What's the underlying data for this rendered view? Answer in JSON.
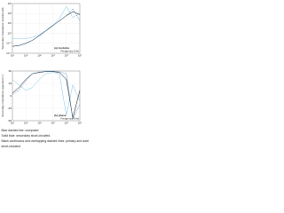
{
  "chart_data": [
    {
      "type": "line",
      "ylabel": "Secondary impedance modulus (Ω)",
      "xlabel": "Frequency (Hz)",
      "annotation": "(a) modulus",
      "xscale": "log",
      "yscale": "log",
      "grid": true,
      "x": [
        10,
        30,
        100,
        300,
        1000,
        3000,
        10000,
        30000,
        100000,
        300000,
        1000000
      ],
      "xlim": [
        10,
        1000000
      ],
      "xticks": [
        {
          "value": 10,
          "label": "10¹"
        },
        {
          "value": 100,
          "label": "10²"
        },
        {
          "value": 1000,
          "label": "10³"
        },
        {
          "value": 10000,
          "label": "10⁴"
        },
        {
          "value": 100000,
          "label": "10⁵"
        },
        {
          "value": 1000000,
          "label": "10⁶"
        }
      ],
      "ylim": [
        0.01,
        1000
      ],
      "yticks": [
        {
          "value": 0.01,
          "label": "10⁻²"
        },
        {
          "value": 0.1,
          "label": "10⁻¹"
        },
        {
          "value": 1,
          "label": "10⁰"
        },
        {
          "value": 10,
          "label": "10¹"
        },
        {
          "value": 100,
          "label": "10²"
        },
        {
          "value": 1000,
          "label": "10³"
        }
      ],
      "series": [
        {
          "color": "#7fc4e6",
          "dash": false,
          "values": [
            0.3,
            0.3,
            0.3,
            0.4,
            0.7,
            2,
            7,
            30,
            500,
            40,
            100
          ]
        },
        {
          "color": "#000000",
          "dash": false,
          "values": [
            0.05,
            0.06,
            0.1,
            0.2,
            0.6,
            1.8,
            6,
            18,
            60,
            150,
            80
          ]
        },
        {
          "color": "#1f6fb5",
          "dash": true,
          "values": [
            0.05,
            0.06,
            0.1,
            0.2,
            0.6,
            1.8,
            6,
            18,
            60,
            300,
            20
          ]
        }
      ]
    },
    {
      "type": "line",
      "ylabel": "Secondary impedance argument (°)",
      "xlabel": "Frequency (Hz)",
      "annotation": "(b) phase",
      "xscale": "log",
      "yscale": "linear",
      "grid": true,
      "x": [
        10,
        30,
        100,
        300,
        1000,
        3000,
        10000,
        30000,
        100000,
        300000,
        1000000
      ],
      "xlim": [
        10,
        1000000
      ],
      "xticks": [
        {
          "value": 10,
          "label": "10¹"
        },
        {
          "value": 100,
          "label": "10²"
        },
        {
          "value": 1000,
          "label": "10³"
        },
        {
          "value": 10000,
          "label": "10⁴"
        },
        {
          "value": 100000,
          "label": "10⁵"
        },
        {
          "value": 1000000,
          "label": "10⁶"
        }
      ],
      "ylim": [
        -90,
        90
      ],
      "yticks": [
        -90,
        -45,
        0,
        45,
        90
      ],
      "series": [
        {
          "color": "#7fc4e6",
          "dash": false,
          "values": [
            60,
            40,
            20,
            30,
            60,
            80,
            85,
            80,
            -70,
            40,
            -20
          ]
        },
        {
          "color": "#000000",
          "dash": false,
          "values": [
            10,
            30,
            60,
            80,
            85,
            88,
            88,
            85,
            60,
            -80,
            20
          ]
        },
        {
          "color": "#1f6fb5",
          "dash": true,
          "values": [
            5,
            20,
            55,
            80,
            86,
            88,
            89,
            87,
            80,
            -85,
            -30
          ]
        }
      ]
    }
  ],
  "caption": [
    "Blue dashed line: computed",
    "Solid blue: secondary short-circuited",
    "Black continuous and overlapping dashed lines: primary and auxiliary",
    "short-circuited"
  ]
}
